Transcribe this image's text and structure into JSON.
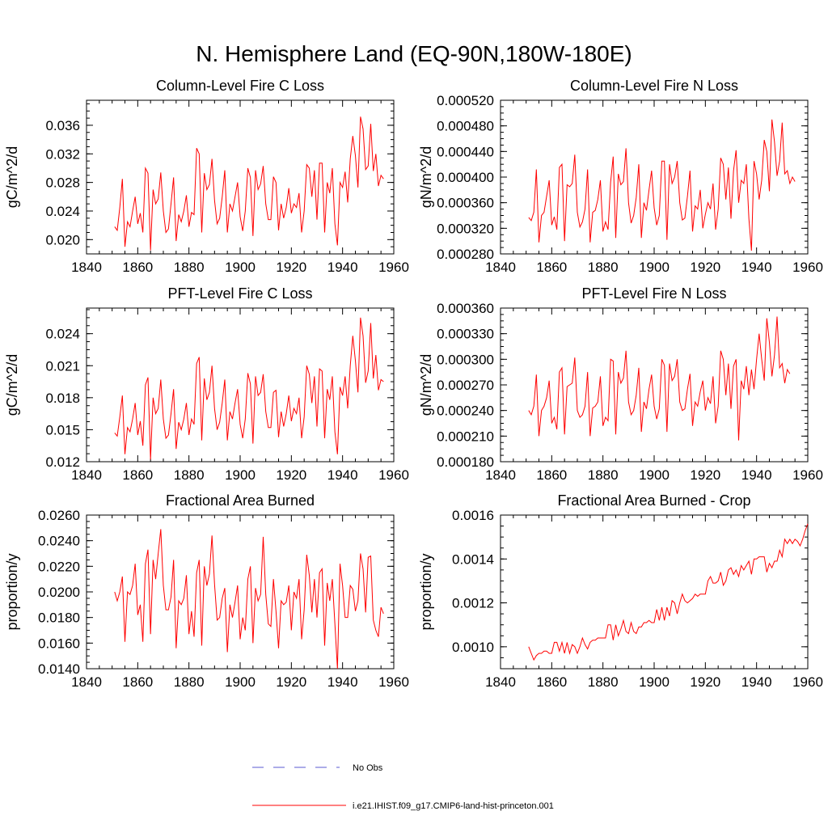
{
  "title": "N. Hemisphere Land (EQ-90N,180W-180E)",
  "colors": {
    "model": "#ff0000",
    "obs": "#5a5ad0"
  },
  "legend": {
    "obs_label": "No Obs",
    "model_label": "i.e21.IHIST.f09_g17.CMIP6-land-hist-princeton.001"
  },
  "chart_data": [
    {
      "type": "line",
      "title": "Column-Level Fire C Loss",
      "ylabel": "gC/m^2/d",
      "xlim": [
        1840,
        1960
      ],
      "ylim": [
        0.018,
        0.0395
      ],
      "xticks": [
        1840,
        1860,
        1880,
        1900,
        1920,
        1940,
        1960
      ],
      "yticks": [
        0.02,
        0.024,
        0.028,
        0.032,
        0.036
      ],
      "ytick_labels": [
        "0.020",
        "0.024",
        "0.028",
        "0.032",
        "0.036"
      ],
      "x_start": 1851,
      "series": [
        {
          "values": [
            0.0218,
            0.0213,
            0.0245,
            0.0285,
            0.019,
            0.0225,
            0.0218,
            0.024,
            0.026,
            0.0222,
            0.0237,
            0.021,
            0.03,
            0.0293,
            0.0185,
            0.027,
            0.025,
            0.0257,
            0.0294,
            0.024,
            0.021,
            0.0215,
            0.025,
            0.0287,
            0.0198,
            0.0235,
            0.0225,
            0.024,
            0.0262,
            0.0218,
            0.0238,
            0.0235,
            0.0328,
            0.032,
            0.021,
            0.0293,
            0.027,
            0.0277,
            0.0313,
            0.0255,
            0.0222,
            0.023,
            0.026,
            0.0297,
            0.021,
            0.025,
            0.024,
            0.026,
            0.028,
            0.0232,
            0.0212,
            0.024,
            0.03,
            0.0287,
            0.0205,
            0.0297,
            0.027,
            0.0278,
            0.0303,
            0.025,
            0.0228,
            0.0228,
            0.0288,
            0.028,
            0.0213,
            0.025,
            0.023,
            0.0245,
            0.0272,
            0.0237,
            0.025,
            0.0245,
            0.0265,
            0.021,
            0.024,
            0.0305,
            0.03,
            0.026,
            0.0297,
            0.0228,
            0.0307,
            0.0307,
            0.021,
            0.028,
            0.0265,
            0.03,
            0.0222,
            0.0192,
            0.028,
            0.0273,
            0.0295,
            0.0252,
            0.0313,
            0.0345,
            0.0318,
            0.0273,
            0.0372,
            0.0355,
            0.0298,
            0.0303,
            0.0362,
            0.0296,
            0.032,
            0.0275,
            0.029,
            0.0285
          ]
        }
      ]
    },
    {
      "type": "line",
      "title": "Column-Level Fire N Loss",
      "ylabel": "gN/m^2/d",
      "xlim": [
        1840,
        1960
      ],
      "ylim": [
        0.00028,
        0.00052
      ],
      "xticks": [
        1840,
        1860,
        1880,
        1900,
        1920,
        1940,
        1960
      ],
      "yticks": [
        0.00028,
        0.00032,
        0.00036,
        0.0004,
        0.00044,
        0.00048,
        0.00052
      ],
      "ytick_labels": [
        "0.000280",
        "0.000320",
        "0.000360",
        "0.000400",
        "0.000440",
        "0.000480",
        "0.000520"
      ],
      "x_start": 1851,
      "series": [
        {
          "values": [
            0.000337,
            0.000332,
            0.000345,
            0.000412,
            0.000298,
            0.00034,
            0.000345,
            0.00037,
            0.000395,
            0.000325,
            0.000338,
            0.000318,
            0.000415,
            0.00042,
            0.0003,
            0.000388,
            0.000385,
            0.00039,
            0.000435,
            0.000345,
            0.000322,
            0.00033,
            0.00035,
            0.000412,
            0.000298,
            0.000345,
            0.000348,
            0.000365,
            0.000395,
            0.000315,
            0.00033,
            0.000318,
            0.000392,
            0.000432,
            0.000305,
            0.000405,
            0.000388,
            0.000393,
            0.000445,
            0.00036,
            0.000328,
            0.00034,
            0.000368,
            0.00042,
            0.000305,
            0.00036,
            0.000348,
            0.00038,
            0.00041,
            0.000352,
            0.000325,
            0.00034,
            0.000425,
            0.000425,
            0.000302,
            0.00042,
            0.00039,
            0.0004,
            0.000425,
            0.00036,
            0.000333,
            0.000336,
            0.00037,
            0.00041,
            0.000315,
            0.000355,
            0.00035,
            0.00038,
            0.00032,
            0.000342,
            0.00036,
            0.00035,
            0.00039,
            0.000318,
            0.00035,
            0.00043,
            0.00042,
            0.000365,
            0.000415,
            0.000335,
            0.00041,
            0.000442,
            0.00036,
            0.000395,
            0.00039,
            0.00042,
            0.000335,
            0.000285,
            0.000425,
            0.000405,
            0.000365,
            0.000395,
            0.000458,
            0.00044,
            0.000378,
            0.00049,
            0.000455,
            0.000402,
            0.000425,
            0.000485,
            0.000405,
            0.00041,
            0.00039,
            0.0004,
            0.000393
          ]
        }
      ]
    },
    {
      "type": "line",
      "title": "PFT-Level Fire C Loss",
      "ylabel": "gC/m^2/d",
      "xlim": [
        1840,
        1960
      ],
      "ylim": [
        0.012,
        0.0264
      ],
      "xticks": [
        1840,
        1860,
        1880,
        1900,
        1920,
        1940,
        1960
      ],
      "yticks": [
        0.012,
        0.015,
        0.018,
        0.021,
        0.024
      ],
      "ytick_labels": [
        "0.012",
        "0.015",
        "0.018",
        "0.021",
        "0.024"
      ],
      "x_start": 1851,
      "series": [
        {
          "values": [
            0.0147,
            0.0144,
            0.0162,
            0.0182,
            0.0127,
            0.0152,
            0.0148,
            0.016,
            0.0175,
            0.0145,
            0.0158,
            0.0135,
            0.0192,
            0.0199,
            0.0122,
            0.018,
            0.0165,
            0.017,
            0.0197,
            0.016,
            0.0142,
            0.0145,
            0.0165,
            0.0188,
            0.0132,
            0.0157,
            0.015,
            0.016,
            0.0175,
            0.0145,
            0.016,
            0.0155,
            0.0212,
            0.0218,
            0.014,
            0.0198,
            0.0178,
            0.0185,
            0.021,
            0.017,
            0.015,
            0.0157,
            0.0175,
            0.0197,
            0.014,
            0.0167,
            0.016,
            0.0175,
            0.0188,
            0.0155,
            0.0142,
            0.016,
            0.0203,
            0.0193,
            0.0137,
            0.02,
            0.0182,
            0.0185,
            0.0202,
            0.0167,
            0.0152,
            0.0152,
            0.0185,
            0.0187,
            0.0143,
            0.0167,
            0.0153,
            0.0165,
            0.0182,
            0.0158,
            0.017,
            0.0165,
            0.018,
            0.0142,
            0.0162,
            0.021,
            0.0202,
            0.0175,
            0.02,
            0.0153,
            0.0207,
            0.0205,
            0.0142,
            0.0188,
            0.0178,
            0.02,
            0.0148,
            0.0127,
            0.019,
            0.0182,
            0.02,
            0.017,
            0.021,
            0.0238,
            0.0215,
            0.0185,
            0.0255,
            0.0238,
            0.0194,
            0.0205,
            0.025,
            0.0198,
            0.022,
            0.0187,
            0.0197,
            0.0195
          ]
        }
      ]
    },
    {
      "type": "line",
      "title": "PFT-Level Fire N Loss",
      "ylabel": "gN/m^2/d",
      "xlim": [
        1840,
        1960
      ],
      "ylim": [
        0.00018,
        0.00036
      ],
      "xticks": [
        1840,
        1860,
        1880,
        1900,
        1920,
        1940,
        1960
      ],
      "yticks": [
        0.00018,
        0.00021,
        0.00024,
        0.00027,
        0.0003,
        0.00033,
        0.00036
      ],
      "ytick_labels": [
        "0.000180",
        "0.000210",
        "0.000240",
        "0.000270",
        "0.000300",
        "0.000330",
        "0.000360"
      ],
      "x_start": 1851,
      "series": [
        {
          "values": [
            0.00024,
            0.000235,
            0.000245,
            0.000282,
            0.00021,
            0.00024,
            0.000245,
            0.000255,
            0.000275,
            0.000225,
            0.000232,
            0.000218,
            0.000285,
            0.00029,
            0.000212,
            0.000268,
            0.00027,
            0.000272,
            0.000302,
            0.00024,
            0.000232,
            0.000235,
            0.000245,
            0.000285,
            0.00021,
            0.000243,
            0.000245,
            0.00025,
            0.00028,
            0.000222,
            0.000232,
            0.000228,
            0.0003,
            0.000298,
            0.000212,
            0.000285,
            0.000272,
            0.000278,
            0.00031,
            0.00025,
            0.000235,
            0.00024,
            0.000258,
            0.00029,
            0.000215,
            0.00025,
            0.000242,
            0.000265,
            0.000282,
            0.000245,
            0.00023,
            0.000242,
            0.0003,
            0.000293,
            0.000215,
            0.000295,
            0.000275,
            0.00028,
            0.0003,
            0.00025,
            0.00024,
            0.000242,
            0.000265,
            0.000283,
            0.000222,
            0.00025,
            0.000245,
            0.000262,
            0.000275,
            0.00024,
            0.000255,
            0.000248,
            0.00028,
            0.000225,
            0.000245,
            0.00031,
            0.0003,
            0.000258,
            0.000295,
            0.000242,
            0.000292,
            0.0003,
            0.000205,
            0.000275,
            0.000265,
            0.000292,
            0.000258,
            0.000288,
            0.000265,
            0.0003,
            0.00033,
            0.0003,
            0.000275,
            0.000348,
            0.00032,
            0.00028,
            0.000305,
            0.00035,
            0.00029,
            0.000295,
            0.000272,
            0.000288,
            0.000283
          ]
        }
      ]
    },
    {
      "type": "line",
      "title": "Fractional Area Burned",
      "ylabel": "proportion/y",
      "xlim": [
        1840,
        1960
      ],
      "ylim": [
        0.014,
        0.026
      ],
      "xticks": [
        1840,
        1860,
        1880,
        1900,
        1920,
        1940,
        1960
      ],
      "yticks": [
        0.014,
        0.016,
        0.018,
        0.02,
        0.022,
        0.024,
        0.026
      ],
      "ytick_labels": [
        "0.0140",
        "0.0160",
        "0.0180",
        "0.0200",
        "0.0220",
        "0.0240",
        "0.0260"
      ],
      "x_start": 1851,
      "series": [
        {
          "values": [
            0.02,
            0.0193,
            0.02,
            0.0212,
            0.0161,
            0.02,
            0.0198,
            0.0205,
            0.0222,
            0.0182,
            0.019,
            0.0161,
            0.0222,
            0.0233,
            0.0167,
            0.0225,
            0.021,
            0.023,
            0.0249,
            0.0205,
            0.0186,
            0.0186,
            0.0196,
            0.0225,
            0.0156,
            0.0193,
            0.019,
            0.0195,
            0.0213,
            0.0167,
            0.0185,
            0.0165,
            0.0215,
            0.0225,
            0.0158,
            0.022,
            0.0205,
            0.0214,
            0.0244,
            0.0206,
            0.0178,
            0.018,
            0.0195,
            0.0203,
            0.0153,
            0.019,
            0.018,
            0.0192,
            0.0205,
            0.0163,
            0.018,
            0.017,
            0.021,
            0.022,
            0.016,
            0.0203,
            0.0193,
            0.0198,
            0.0243,
            0.0198,
            0.0175,
            0.0173,
            0.021,
            0.0185,
            0.0156,
            0.0193,
            0.019,
            0.0192,
            0.0205,
            0.017,
            0.02,
            0.0195,
            0.021,
            0.0163,
            0.0186,
            0.0229,
            0.0213,
            0.0184,
            0.021,
            0.018,
            0.0215,
            0.0218,
            0.0158,
            0.0207,
            0.0193,
            0.021,
            0.0175,
            0.014,
            0.0222,
            0.0205,
            0.018,
            0.018,
            0.0205,
            0.0202,
            0.0185,
            0.0193,
            0.023,
            0.0218,
            0.0184,
            0.0227,
            0.0228,
            0.0178,
            0.017,
            0.0165,
            0.0188,
            0.0183
          ]
        }
      ]
    },
    {
      "type": "line",
      "title": "Fractional Area Burned - Crop",
      "ylabel": "proportion/y",
      "xlim": [
        1840,
        1960
      ],
      "ylim": [
        0.0009,
        0.0016
      ],
      "xticks": [
        1840,
        1860,
        1880,
        1900,
        1920,
        1940,
        1960
      ],
      "yticks": [
        0.001,
        0.0012,
        0.0014,
        0.0016
      ],
      "ytick_labels": [
        "0.0010",
        "0.0012",
        "0.0014",
        "0.0016"
      ],
      "x_start": 1851,
      "series": [
        {
          "values": [
            0.001,
            0.00097,
            0.00094,
            0.00096,
            0.00097,
            0.00097,
            0.00098,
            0.00098,
            0.00097,
            0.00097,
            0.00102,
            0.00102,
            0.00098,
            0.00102,
            0.00097,
            0.00102,
            0.00097,
            0.00101,
            0.001,
            0.00097,
            0.001,
            0.00104,
            0.00101,
            0.00099,
            0.00102,
            0.00103,
            0.00103,
            0.00104,
            0.00104,
            0.00104,
            0.00104,
            0.0011,
            0.0011,
            0.00103,
            0.0011,
            0.00105,
            0.00108,
            0.00112,
            0.00107,
            0.00106,
            0.00111,
            0.00107,
            0.00106,
            0.00109,
            0.00109,
            0.00111,
            0.00111,
            0.00112,
            0.00111,
            0.00111,
            0.00117,
            0.00112,
            0.00118,
            0.00112,
            0.00118,
            0.00114,
            0.00121,
            0.0012,
            0.00115,
            0.0012,
            0.00124,
            0.00121,
            0.0012,
            0.00121,
            0.00122,
            0.00124,
            0.00123,
            0.00124,
            0.00124,
            0.00124,
            0.0013,
            0.00132,
            0.00129,
            0.00129,
            0.0013,
            0.00134,
            0.00128,
            0.0013,
            0.00135,
            0.00136,
            0.00133,
            0.00135,
            0.00132,
            0.00137,
            0.00135,
            0.00137,
            0.00139,
            0.00133,
            0.0014,
            0.0014,
            0.00141,
            0.00141,
            0.00141,
            0.00134,
            0.00138,
            0.00136,
            0.00139,
            0.00139,
            0.00144,
            0.00141,
            0.00149,
            0.00147,
            0.00149,
            0.00147,
            0.00149,
            0.00148,
            0.00146,
            0.00149,
            0.00153,
            0.00156
          ]
        }
      ]
    }
  ]
}
